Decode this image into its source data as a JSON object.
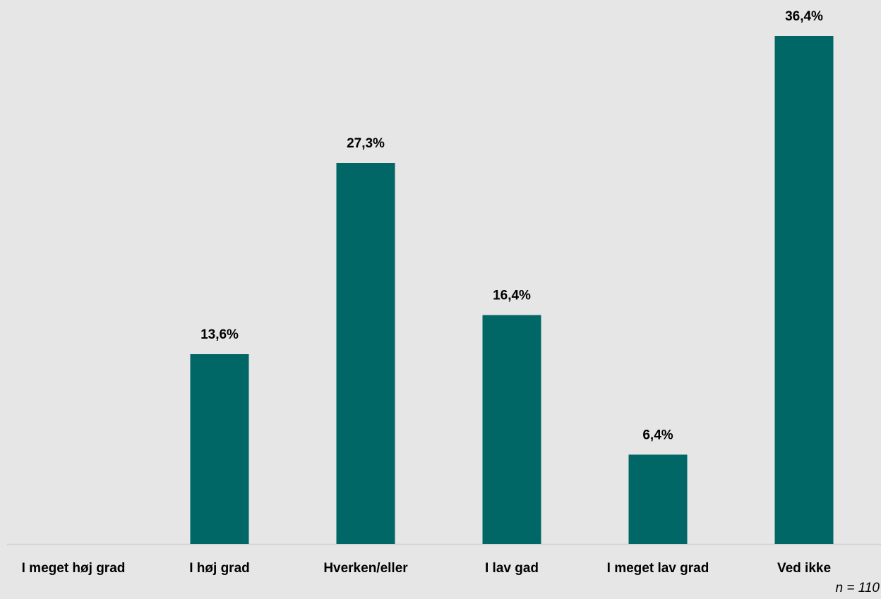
{
  "chart_data": {
    "type": "bar",
    "categories": [
      "I meget høj grad",
      "I høj grad",
      "Hverken/eller",
      "I lav gad",
      "I meget lav grad",
      "Ved ikke"
    ],
    "values": [
      0,
      13.6,
      27.3,
      16.4,
      6.4,
      36.4
    ],
    "data_labels": [
      "",
      "13,6%",
      "27,3%",
      "16,4%",
      "6,4%",
      "36,4%"
    ],
    "ylim": [
      0,
      36.4
    ],
    "grid": false,
    "legend": "none",
    "bar_color": "#006666",
    "axis_color": "#d0d0d0",
    "background_color": "#e6e6e6"
  },
  "note": "n = 110"
}
